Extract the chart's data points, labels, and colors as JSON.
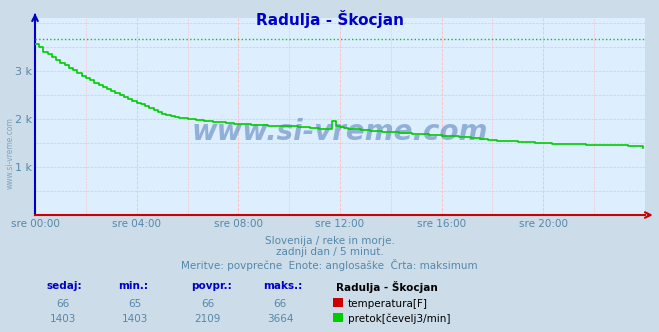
{
  "title": "Radulja - Škocjan",
  "title_color": "#0000cc",
  "bg_color": "#ccdce8",
  "plot_bg_color": "#ddeeff",
  "grid_color_v": "#ffcccc",
  "grid_color_h": "#ffcccc",
  "axis_color_x": "#cc0000",
  "axis_color_y": "#0000cc",
  "tick_color": "#5588aa",
  "watermark": "www.si-vreme.com",
  "subtitle1": "Slovenija / reke in morje.",
  "subtitle2": "zadnji dan / 5 minut.",
  "subtitle3": "Meritve: povprečne  Enote: anglosaške  Črta: maksimum",
  "xticklabels": [
    "sre 00:00",
    "sre 04:00",
    "sre 08:00",
    "sre 12:00",
    "sre 16:00",
    "sre 20:00"
  ],
  "xtick_positions": [
    0,
    48,
    96,
    144,
    192,
    240
  ],
  "ytick_labels": [
    "1 k",
    "2 k",
    "3 k"
  ],
  "ytick_positions": [
    1000,
    2000,
    3000
  ],
  "ylim": [
    0,
    4100
  ],
  "xlim": [
    0,
    288
  ],
  "max_flow": 3664,
  "flow_color": "#00cc00",
  "temp_color": "#cc0000",
  "flow_data_steps": [
    [
      0,
      3550
    ],
    [
      2,
      3490
    ],
    [
      4,
      3400
    ],
    [
      6,
      3350
    ],
    [
      8,
      3290
    ],
    [
      10,
      3230
    ],
    [
      12,
      3170
    ],
    [
      14,
      3120
    ],
    [
      16,
      3060
    ],
    [
      18,
      3010
    ],
    [
      20,
      2950
    ],
    [
      22,
      2900
    ],
    [
      24,
      2850
    ],
    [
      26,
      2800
    ],
    [
      28,
      2750
    ],
    [
      30,
      2700
    ],
    [
      32,
      2660
    ],
    [
      34,
      2620
    ],
    [
      36,
      2580
    ],
    [
      38,
      2540
    ],
    [
      40,
      2500
    ],
    [
      42,
      2460
    ],
    [
      44,
      2420
    ],
    [
      46,
      2380
    ],
    [
      48,
      2340
    ],
    [
      50,
      2300
    ],
    [
      52,
      2260
    ],
    [
      54,
      2220
    ],
    [
      56,
      2180
    ],
    [
      58,
      2150
    ],
    [
      60,
      2110
    ],
    [
      62,
      2080
    ],
    [
      64,
      2060
    ],
    [
      66,
      2040
    ],
    [
      68,
      2020
    ],
    [
      70,
      2010
    ],
    [
      72,
      2000
    ],
    [
      74,
      1990
    ],
    [
      76,
      1980
    ],
    [
      78,
      1970
    ],
    [
      80,
      1960
    ],
    [
      82,
      1950
    ],
    [
      84,
      1940
    ],
    [
      86,
      1940
    ],
    [
      88,
      1930
    ],
    [
      90,
      1920
    ],
    [
      92,
      1910
    ],
    [
      94,
      1900
    ],
    [
      96,
      1895
    ],
    [
      98,
      1890
    ],
    [
      100,
      1885
    ],
    [
      102,
      1880
    ],
    [
      104,
      1875
    ],
    [
      106,
      1870
    ],
    [
      108,
      1865
    ],
    [
      110,
      1862
    ],
    [
      112,
      1858
    ],
    [
      114,
      1855
    ],
    [
      116,
      1852
    ],
    [
      118,
      1850
    ],
    [
      120,
      1848
    ],
    [
      122,
      1845
    ],
    [
      124,
      1840
    ],
    [
      126,
      1835
    ],
    [
      128,
      1830
    ],
    [
      130,
      1820
    ],
    [
      132,
      1810
    ],
    [
      134,
      1800
    ],
    [
      136,
      1790
    ],
    [
      138,
      1780
    ],
    [
      140,
      1960
    ],
    [
      142,
      1850
    ],
    [
      144,
      1840
    ],
    [
      146,
      1820
    ],
    [
      148,
      1800
    ],
    [
      150,
      1790
    ],
    [
      152,
      1780
    ],
    [
      154,
      1770
    ],
    [
      156,
      1762
    ],
    [
      158,
      1755
    ],
    [
      160,
      1748
    ],
    [
      162,
      1742
    ],
    [
      164,
      1736
    ],
    [
      166,
      1730
    ],
    [
      168,
      1724
    ],
    [
      170,
      1718
    ],
    [
      172,
      1712
    ],
    [
      174,
      1706
    ],
    [
      176,
      1700
    ],
    [
      178,
      1694
    ],
    [
      180,
      1688
    ],
    [
      182,
      1682
    ],
    [
      184,
      1676
    ],
    [
      186,
      1670
    ],
    [
      188,
      1664
    ],
    [
      190,
      1658
    ],
    [
      192,
      1652
    ],
    [
      194,
      1646
    ],
    [
      196,
      1640
    ],
    [
      198,
      1634
    ],
    [
      200,
      1628
    ],
    [
      202,
      1622
    ],
    [
      204,
      1616
    ],
    [
      206,
      1610
    ],
    [
      208,
      1600
    ],
    [
      210,
      1590
    ],
    [
      212,
      1580
    ],
    [
      214,
      1570
    ],
    [
      216,
      1560
    ],
    [
      218,
      1550
    ],
    [
      220,
      1545
    ],
    [
      222,
      1540
    ],
    [
      224,
      1535
    ],
    [
      226,
      1530
    ],
    [
      228,
      1525
    ],
    [
      230,
      1520
    ],
    [
      232,
      1515
    ],
    [
      234,
      1510
    ],
    [
      236,
      1505
    ],
    [
      238,
      1500
    ],
    [
      240,
      1495
    ],
    [
      242,
      1490
    ],
    [
      244,
      1485
    ],
    [
      246,
      1480
    ],
    [
      248,
      1478
    ],
    [
      250,
      1476
    ],
    [
      252,
      1474
    ],
    [
      254,
      1472
    ],
    [
      256,
      1470
    ],
    [
      258,
      1468
    ],
    [
      260,
      1466
    ],
    [
      262,
      1464
    ],
    [
      264,
      1462
    ],
    [
      266,
      1460
    ],
    [
      268,
      1458
    ],
    [
      270,
      1456
    ],
    [
      272,
      1454
    ],
    [
      274,
      1452
    ],
    [
      276,
      1450
    ],
    [
      278,
      1448
    ],
    [
      280,
      1446
    ],
    [
      282,
      1444
    ],
    [
      284,
      1442
    ],
    [
      286,
      1440
    ],
    [
      287,
      1403
    ]
  ],
  "temp_display_value": 0,
  "table_header": [
    "sedaj:",
    "min.:",
    "povpr.:",
    "maks.:"
  ],
  "table_data": {
    "temp": {
      "sedaj": "66",
      "min": "65",
      "povpr": "66",
      "maks": "66"
    },
    "flow": {
      "sedaj": "1403",
      "min": "1403",
      "povpr": "2109",
      "maks": "3664"
    }
  },
  "legend_label1": "temperatura[F]",
  "legend_label2": "pretok[čevelj3/min]",
  "station_label": "Radulja - Škocjan"
}
